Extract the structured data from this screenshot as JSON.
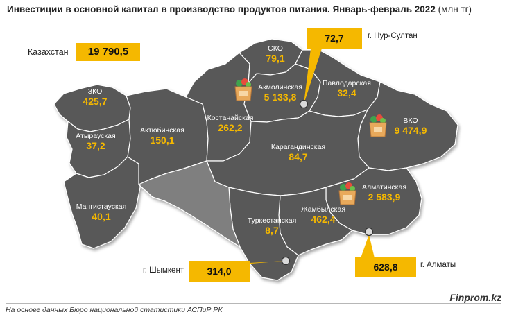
{
  "title_bold": "Инвестиции в основной капитал в производство продуктов питания. Январь-февраль 2022",
  "title_unit": "(млн тг)",
  "kazakhstan": {
    "label": "Казахстан",
    "value": "19 790,5"
  },
  "regions": {
    "sko": {
      "name": "СКО",
      "value": "79,1"
    },
    "akmola": {
      "name": "Акмолинская",
      "value": "5 133,8"
    },
    "pavlodar": {
      "name": "Павлодарская",
      "value": "32,4"
    },
    "zko": {
      "name": "ЗКО",
      "value": "425,7"
    },
    "atyrau": {
      "name": "Атырауская",
      "value": "37,2"
    },
    "aktobe": {
      "name": "Актюбинская",
      "value": "150,1"
    },
    "kostanay": {
      "name": "Костанайская",
      "value": "262,2"
    },
    "vko": {
      "name": "ВКО",
      "value": "9 474,9"
    },
    "karaganda": {
      "name": "Карагандинская",
      "value": "84,7"
    },
    "almaty_obl": {
      "name": "Алматинская",
      "value": "2 583,9"
    },
    "mangystau": {
      "name": "Мангистауская",
      "value": "40,1"
    },
    "zhambyl": {
      "name": "Жамбылская",
      "value": "462,4"
    },
    "turkestan": {
      "name": "Туркестанская",
      "value": "8,7"
    }
  },
  "cities": {
    "nursultan": {
      "label": "г. Нур-Султан",
      "value": "72,7"
    },
    "shymkent": {
      "label": "г. Шымкент",
      "value": "314,0"
    },
    "almaty": {
      "label": "г. Алматы",
      "value": "628,8"
    }
  },
  "icons": [
    "grocery-bag-icon",
    "city-marker-icon"
  ],
  "colors": {
    "region": "#595959",
    "highlight": "#7f7f7f",
    "value": "#f5b800",
    "callout": "#f5b800"
  },
  "source": "На основе данных Бюро национальной статистики АСПиР РК",
  "brand": "Finprom.kz"
}
